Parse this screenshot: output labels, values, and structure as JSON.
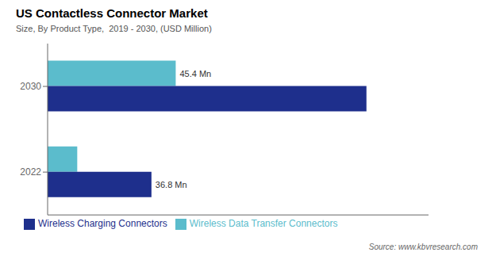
{
  "chart_data": {
    "type": "bar",
    "orientation": "horizontal",
    "title": "US Contactless Connector Market",
    "subtitle": "Size, By Product Type,  2019 - 2030, (USD Million)",
    "annotations": [
      "Source: www.kbvresearch.com"
    ],
    "categories": [
      "2030",
      "2022"
    ],
    "series": [
      {
        "name": "Wireless Data Transfer Connectors",
        "color": "#5bbccc",
        "values": [
          45.4,
          10.5
        ],
        "value_labels": [
          "45.4 Mn",
          null
        ]
      },
      {
        "name": "Wireless Charging Connectors",
        "color": "#1e2f8c",
        "values": [
          113.0,
          36.8
        ],
        "value_labels": [
          null,
          "36.8 Mn"
        ]
      }
    ],
    "xlim": [
      0,
      135
    ],
    "grid": false,
    "legend": "bottom",
    "tick_labels": "y"
  }
}
